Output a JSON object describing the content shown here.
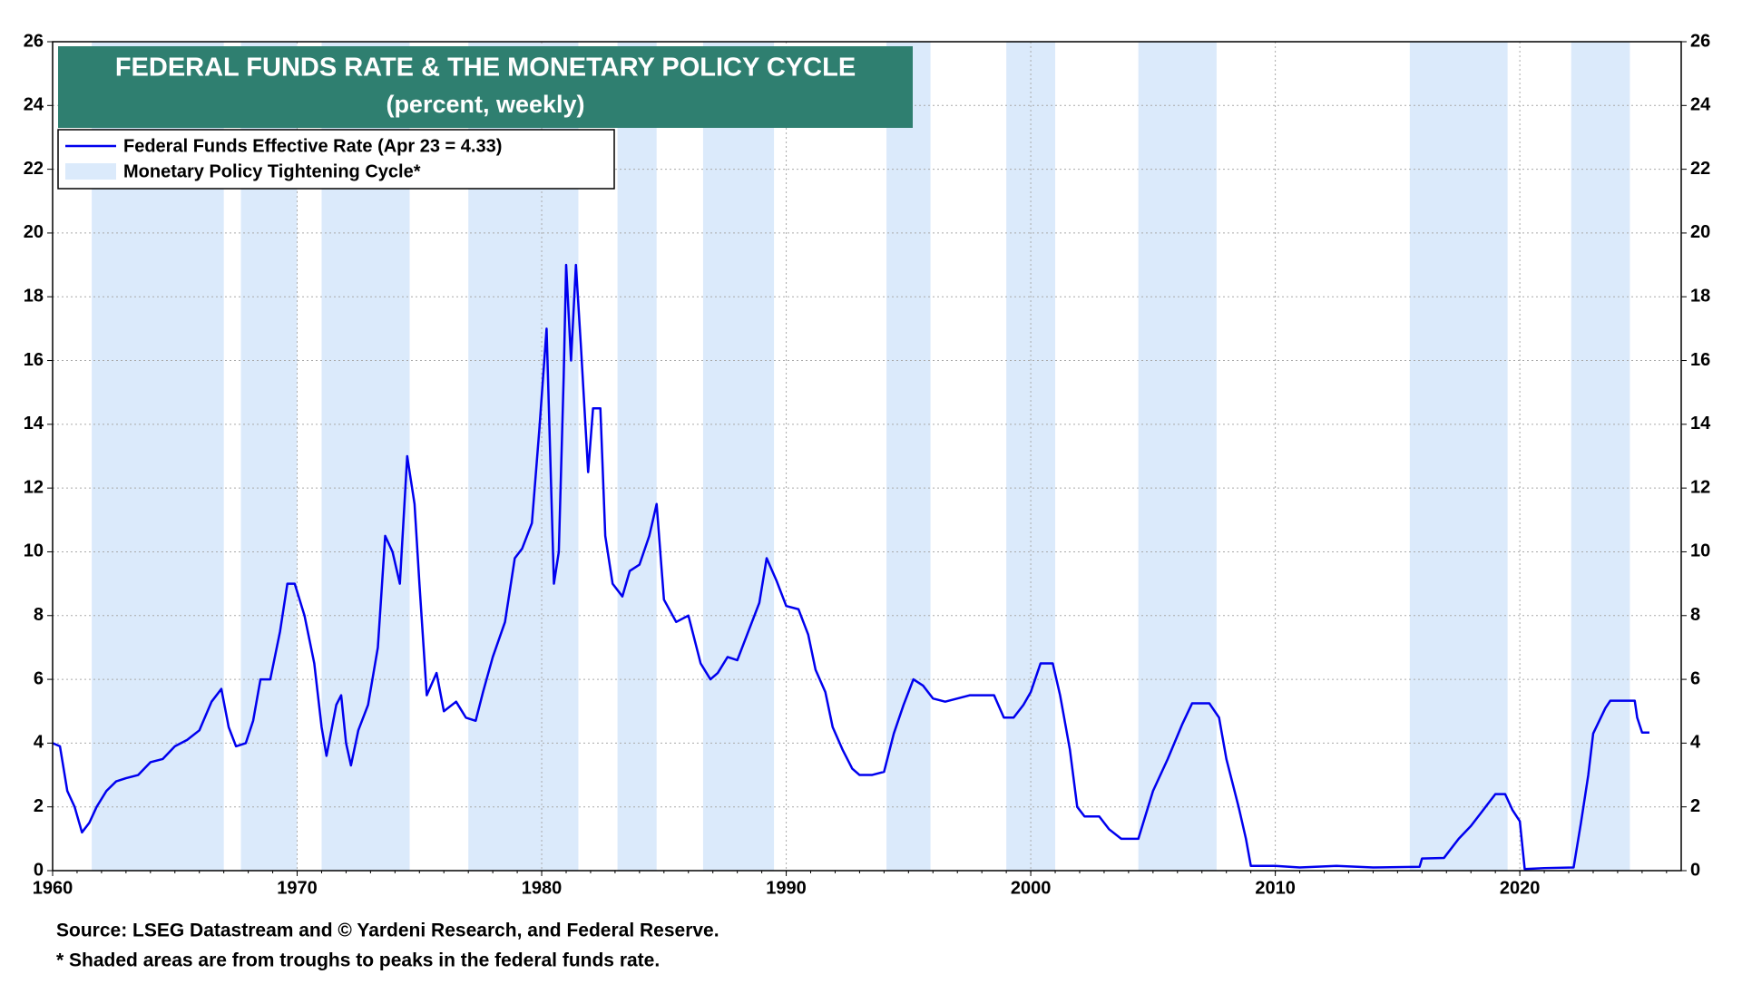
{
  "chart_data": {
    "type": "line",
    "title": "FEDERAL FUNDS RATE & THE MONETARY POLICY CYCLE",
    "subtitle": "(percent, weekly)",
    "x": [
      1960.0,
      1960.3,
      1960.6,
      1960.9,
      1961.2,
      1961.5,
      1961.8,
      1962.2,
      1962.6,
      1963.0,
      1963.5,
      1964.0,
      1964.5,
      1965.0,
      1965.5,
      1966.0,
      1966.5,
      1966.9,
      1967.2,
      1967.5,
      1967.9,
      1968.2,
      1968.5,
      1968.9,
      1969.3,
      1969.6,
      1969.9,
      1970.3,
      1970.7,
      1971.0,
      1971.2,
      1971.6,
      1971.8,
      1972.0,
      1972.2,
      1972.5,
      1972.9,
      1973.3,
      1973.6,
      1973.9,
      1974.2,
      1974.5,
      1974.8,
      1975.0,
      1975.3,
      1975.7,
      1976.0,
      1976.5,
      1976.9,
      1977.3,
      1977.6,
      1978.0,
      1978.5,
      1978.9,
      1979.2,
      1979.6,
      1979.9,
      1980.2,
      1980.35,
      1980.5,
      1980.7,
      1980.9,
      1981.0,
      1981.2,
      1981.4,
      1981.6,
      1981.9,
      1982.1,
      1982.4,
      1982.6,
      1982.9,
      1983.3,
      1983.6,
      1984.0,
      1984.4,
      1984.7,
      1985.0,
      1985.5,
      1986.0,
      1986.5,
      1986.9,
      1987.2,
      1987.6,
      1988.0,
      1988.5,
      1988.9,
      1989.2,
      1989.6,
      1990.0,
      1990.5,
      1990.9,
      1991.2,
      1991.6,
      1991.9,
      1992.3,
      1992.7,
      1993.0,
      1993.5,
      1994.0,
      1994.4,
      1994.8,
      1995.2,
      1995.6,
      1996.0,
      1996.5,
      1997.0,
      1997.5,
      1998.0,
      1998.5,
      1998.9,
      1999.3,
      1999.7,
      2000.0,
      2000.4,
      2000.9,
      2001.2,
      2001.6,
      2001.9,
      2002.2,
      2002.8,
      2003.2,
      2003.7,
      2004.4,
      2005.0,
      2005.6,
      2006.2,
      2006.6,
      2007.3,
      2007.7,
      2008.0,
      2008.5,
      2008.8,
      2009.0,
      2010.0,
      2011.0,
      2012.5,
      2014.0,
      2015.9,
      2016.0,
      2016.9,
      2017.5,
      2018.0,
      2018.5,
      2019.0,
      2019.4,
      2019.7,
      2020.0,
      2020.2,
      2021.0,
      2022.2,
      2022.5,
      2022.8,
      2023.0,
      2023.5,
      2023.7,
      2024.7,
      2024.8,
      2025.0,
      2025.3
    ],
    "series": [
      {
        "name": "Federal Funds Effective Rate (Apr 23 = 4.33)",
        "color": "#0000ee",
        "values": [
          4.0,
          3.9,
          2.5,
          2.0,
          1.2,
          1.5,
          2.0,
          2.5,
          2.8,
          2.9,
          3.0,
          3.4,
          3.5,
          3.9,
          4.1,
          4.4,
          5.3,
          5.7,
          4.5,
          3.9,
          4.0,
          4.7,
          6.0,
          6.0,
          7.5,
          9.0,
          9.0,
          8.0,
          6.5,
          4.5,
          3.6,
          5.2,
          5.5,
          4.0,
          3.3,
          4.4,
          5.2,
          7.0,
          10.5,
          10.0,
          9.0,
          13.0,
          11.5,
          9.0,
          5.5,
          6.2,
          5.0,
          5.3,
          4.8,
          4.7,
          5.6,
          6.7,
          7.8,
          9.8,
          10.1,
          10.9,
          13.8,
          17.0,
          13.0,
          9.0,
          10.0,
          15.5,
          19.0,
          16.0,
          19.0,
          16.5,
          12.5,
          14.5,
          14.5,
          10.5,
          9.0,
          8.6,
          9.4,
          9.6,
          10.5,
          11.5,
          8.5,
          7.8,
          8.0,
          6.5,
          6.0,
          6.2,
          6.7,
          6.6,
          7.6,
          8.4,
          9.8,
          9.1,
          8.3,
          8.2,
          7.4,
          6.3,
          5.6,
          4.5,
          3.8,
          3.2,
          3.0,
          3.0,
          3.1,
          4.3,
          5.2,
          6.0,
          5.8,
          5.4,
          5.3,
          5.4,
          5.5,
          5.5,
          5.5,
          4.8,
          4.8,
          5.2,
          5.6,
          6.5,
          6.5,
          5.5,
          3.8,
          2.0,
          1.7,
          1.7,
          1.3,
          1.0,
          1.0,
          2.5,
          3.5,
          4.6,
          5.25,
          5.25,
          4.8,
          3.5,
          2.0,
          1.0,
          0.15,
          0.15,
          0.1,
          0.15,
          0.1,
          0.12,
          0.38,
          0.4,
          1.0,
          1.4,
          1.9,
          2.4,
          2.4,
          1.9,
          1.55,
          0.05,
          0.08,
          0.1,
          1.5,
          3.0,
          4.3,
          5.1,
          5.33,
          5.33,
          4.8,
          4.33,
          4.33
        ]
      }
    ],
    "shaded": {
      "name": "Monetary Policy Tightening Cycle*",
      "color": "#dbeafb",
      "ranges": [
        [
          1961.6,
          1967.0
        ],
        [
          1967.7,
          1970.0
        ],
        [
          1971.0,
          1974.6
        ],
        [
          1977.0,
          1981.5
        ],
        [
          1983.1,
          1984.7
        ],
        [
          1986.6,
          1989.5
        ],
        [
          1994.1,
          1995.9
        ],
        [
          1999.0,
          2001.0
        ],
        [
          2004.4,
          2007.6
        ],
        [
          2015.5,
          2019.5
        ],
        [
          2022.1,
          2024.5
        ]
      ]
    },
    "xlim": [
      1960,
      2026.6
    ],
    "ylim": [
      0,
      26
    ],
    "xticks": [
      1960,
      1970,
      1980,
      1990,
      2000,
      2010,
      2020
    ],
    "yticks": [
      0,
      2,
      4,
      6,
      8,
      10,
      12,
      14,
      16,
      18,
      20,
      22,
      24,
      26
    ],
    "grid": true,
    "source": "Source: LSEG Datastream and © Yardeni Research, and Federal Reserve.",
    "note": "* Shaded areas are from troughs to peaks in the federal funds rate."
  }
}
